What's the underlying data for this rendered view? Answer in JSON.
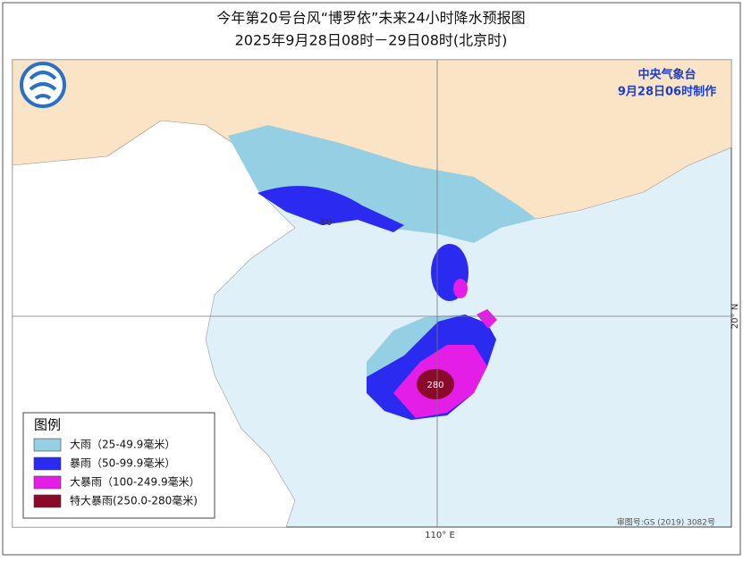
{
  "header": {
    "title": "今年第20号台风“博罗依”未来24小时降水预报图",
    "subtitle": "2025年9月28日08时－29日08时(北京时)"
  },
  "agency": {
    "name": "中央气象台",
    "issued": "9月28日06时制作"
  },
  "map": {
    "labels": [
      {
        "text": "80"
      },
      {
        "text": "280"
      }
    ],
    "axes": {
      "longitude": "110° E",
      "latitude": "20° N"
    },
    "approval": "审图号:GS (2019) 3082号"
  },
  "legend": {
    "title": "图例",
    "items": [
      {
        "label": "大雨（25-49.9毫米）",
        "color": "#94cfe4"
      },
      {
        "label": "暴雨（50-99.9毫米）",
        "color": "#2a2af0"
      },
      {
        "label": "大暴雨（100-249.9毫米）",
        "color": "#e41ee6"
      },
      {
        "label": "特大暴雨(250.0-280毫米)",
        "color": "#8a0a2c"
      }
    ]
  }
}
